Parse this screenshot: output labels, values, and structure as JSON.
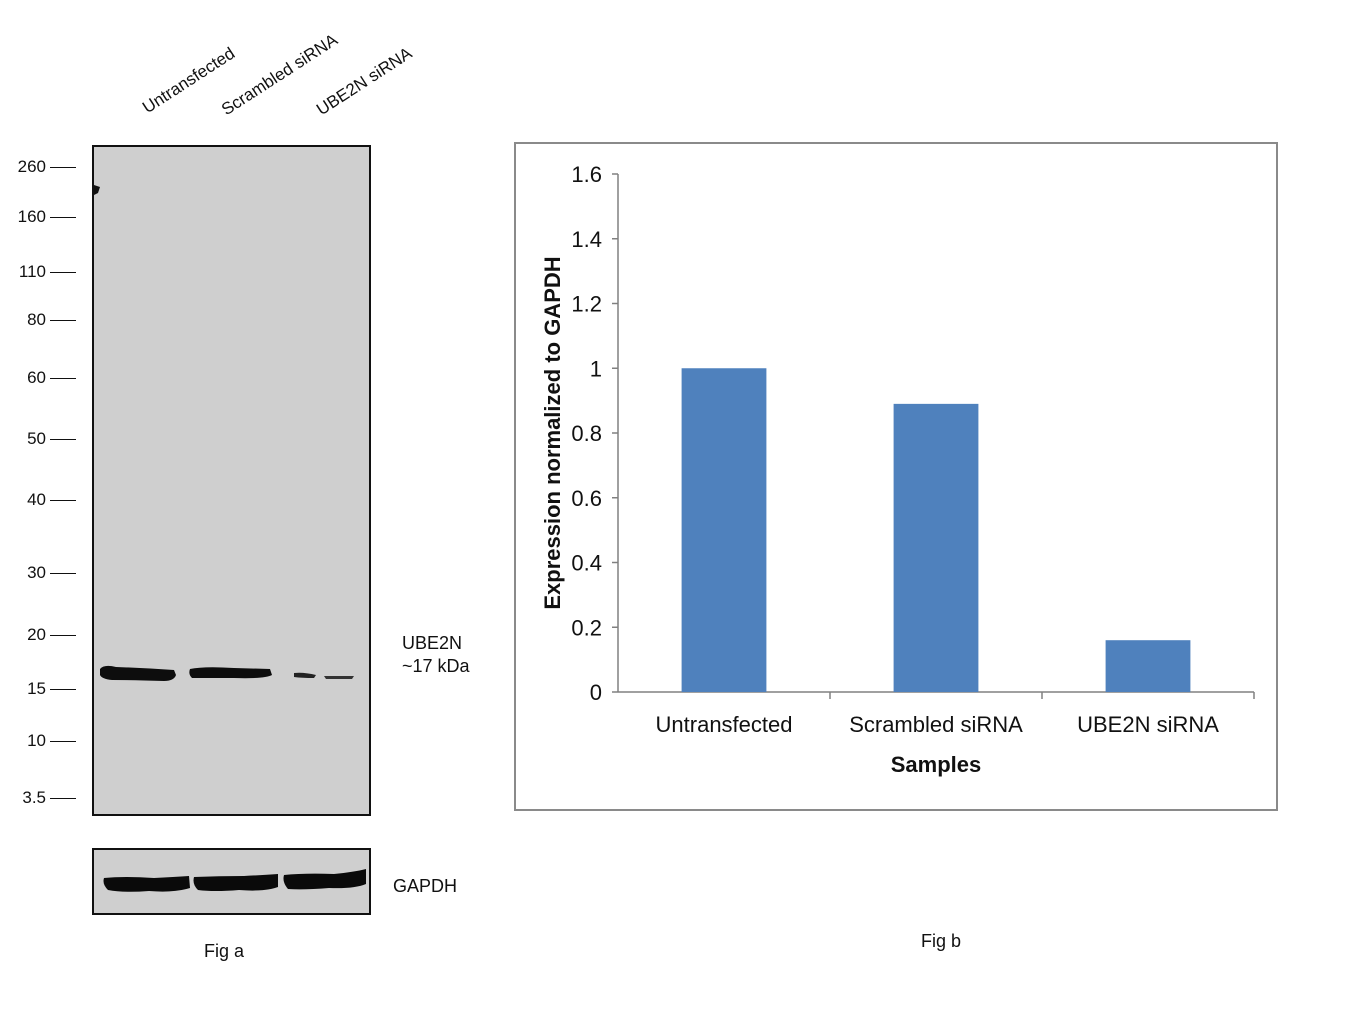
{
  "fig_a": {
    "lane_labels": [
      "Untransfected",
      "Scrambled siRNA",
      "UBE2N siRNA"
    ],
    "mw_markers": [
      "260",
      "160",
      "110",
      "80",
      "60",
      "50",
      "40",
      "30",
      "20",
      "15",
      "10",
      "3.5"
    ],
    "band_name": "UBE2N",
    "band_size": "~17 kDa",
    "loading_control": "GAPDH",
    "caption": "Fig a"
  },
  "fig_b": {
    "caption": "Fig b"
  },
  "chart_data": {
    "type": "bar",
    "categories": [
      "Untransfected",
      "Scrambled siRNA",
      "UBE2N siRNA"
    ],
    "values": [
      1.0,
      0.89,
      0.16
    ],
    "xlabel": "Samples",
    "ylabel": "Expression normalized to GAPDH",
    "ylim": [
      0,
      1.6
    ],
    "yticks": [
      "0",
      "0.2",
      "0.4",
      "0.6",
      "0.8",
      "1",
      "1.2",
      "1.4",
      "1.6"
    ],
    "bar_color": "#4f81bd",
    "grid": false,
    "legend": "none"
  }
}
